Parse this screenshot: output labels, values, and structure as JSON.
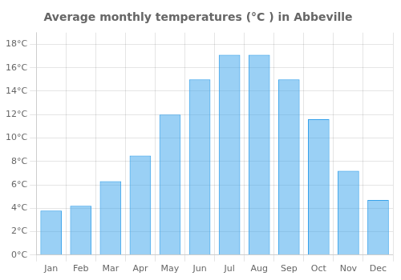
{
  "chart_data": {
    "type": "bar",
    "title": "Average monthly temperatures (°C ) in Abbeville",
    "categories": [
      "Jan",
      "Feb",
      "Mar",
      "Apr",
      "May",
      "Jun",
      "Jul",
      "Aug",
      "Sep",
      "Oct",
      "Nov",
      "Dec"
    ],
    "values": [
      3.8,
      4.2,
      6.3,
      8.5,
      12.0,
      15.0,
      17.1,
      17.1,
      15.0,
      11.6,
      7.2,
      4.7
    ],
    "ylim": [
      0,
      19
    ],
    "yticks": [
      {
        "value": 0,
        "label": "0°C"
      },
      {
        "value": 2,
        "label": "2°C"
      },
      {
        "value": 4,
        "label": "4°C"
      },
      {
        "value": 6,
        "label": "6°C"
      },
      {
        "value": 8,
        "label": "8°C"
      },
      {
        "value": 10,
        "label": "10°C"
      },
      {
        "value": 12,
        "label": "12°C"
      },
      {
        "value": 14,
        "label": "14°C"
      },
      {
        "value": 16,
        "label": "16°C"
      },
      {
        "value": 18,
        "label": "18°C"
      }
    ],
    "grid": true
  }
}
